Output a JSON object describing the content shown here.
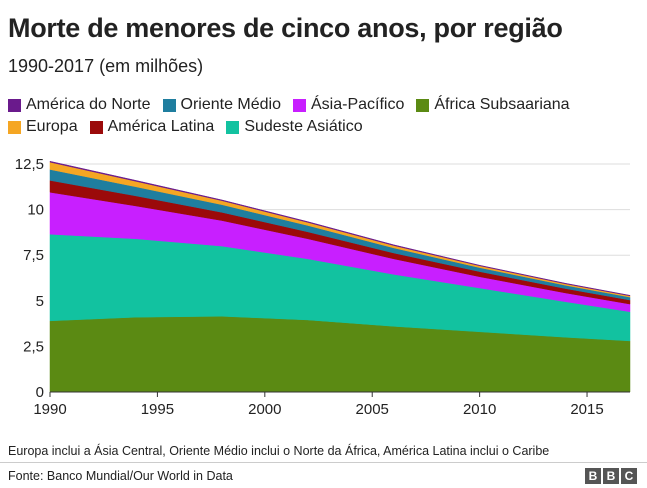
{
  "header": {
    "title": "Morte de menores de cinco anos, por região",
    "subtitle": "1990-2017 (em milhões)"
  },
  "legend": {
    "rows": [
      [
        {
          "label": "América do Norte",
          "color": "#6a1a8c"
        },
        {
          "label": "Oriente Médio",
          "color": "#1f7e9f"
        },
        {
          "label": "Ásia-Pacífico",
          "color": "#c81fff"
        },
        {
          "label": "África Subsaariana",
          "color": "#5b8a13"
        }
      ],
      [
        {
          "label": "Europa",
          "color": "#f5a623"
        },
        {
          "label": "América Latina",
          "color": "#9b0a0a"
        },
        {
          "label": "Sudeste Asiático",
          "color": "#12c2a0"
        }
      ]
    ]
  },
  "chart_data": {
    "type": "area",
    "stacked": true,
    "title": "Morte de menores de cinco anos, por região",
    "subtitle": "1990-2017 (em milhões)",
    "xlabel": "",
    "ylabel": "",
    "xlim": [
      1990,
      2017
    ],
    "ylim": [
      0,
      12.5
    ],
    "x_ticks": [
      1990,
      1995,
      2000,
      2005,
      2010,
      2015
    ],
    "x_tick_labels": [
      "1990",
      "1995",
      "2000",
      "2005",
      "2010",
      "2015"
    ],
    "y_ticks": [
      0,
      2.5,
      5,
      7.5,
      10,
      12.5
    ],
    "y_tick_labels": [
      "0",
      "2,5",
      "5",
      "7,5",
      "10",
      "12,5"
    ],
    "grid": true,
    "legend_position": "top",
    "x": [
      1990,
      1994,
      1998,
      2002,
      2006,
      2010,
      2014,
      2017
    ],
    "series": [
      {
        "name": "África Subsaariana",
        "color": "#5b8a13",
        "values": [
          3.9,
          4.1,
          4.15,
          3.95,
          3.6,
          3.3,
          3.0,
          2.8
        ]
      },
      {
        "name": "Sudeste Asiático",
        "color": "#12c2a0",
        "values": [
          4.75,
          4.3,
          3.85,
          3.35,
          2.85,
          2.4,
          1.95,
          1.6
        ]
      },
      {
        "name": "Ásia-Pacífico",
        "color": "#c81fff",
        "values": [
          2.3,
          1.8,
          1.4,
          1.1,
          0.85,
          0.62,
          0.48,
          0.42
        ]
      },
      {
        "name": "América Latina",
        "color": "#9b0a0a",
        "values": [
          0.65,
          0.55,
          0.45,
          0.38,
          0.32,
          0.28,
          0.24,
          0.22
        ]
      },
      {
        "name": "Oriente Médio",
        "color": "#1f7e9f",
        "values": [
          0.6,
          0.5,
          0.42,
          0.35,
          0.28,
          0.22,
          0.18,
          0.16
        ]
      },
      {
        "name": "Europa",
        "color": "#f5a623",
        "values": [
          0.4,
          0.3,
          0.22,
          0.17,
          0.13,
          0.1,
          0.08,
          0.07
        ]
      },
      {
        "name": "América do Norte",
        "color": "#6a1a8c",
        "values": [
          0.05,
          0.05,
          0.04,
          0.04,
          0.04,
          0.03,
          0.03,
          0.03
        ]
      }
    ]
  },
  "footer": {
    "note": "Europa inclui a Ásia Central, Oriente Médio inclui o Norte da África, América Latina inclui o Caribe",
    "source": "Fonte: Banco Mundial/Our World in Data",
    "logo_letters": [
      "B",
      "B",
      "C"
    ]
  }
}
